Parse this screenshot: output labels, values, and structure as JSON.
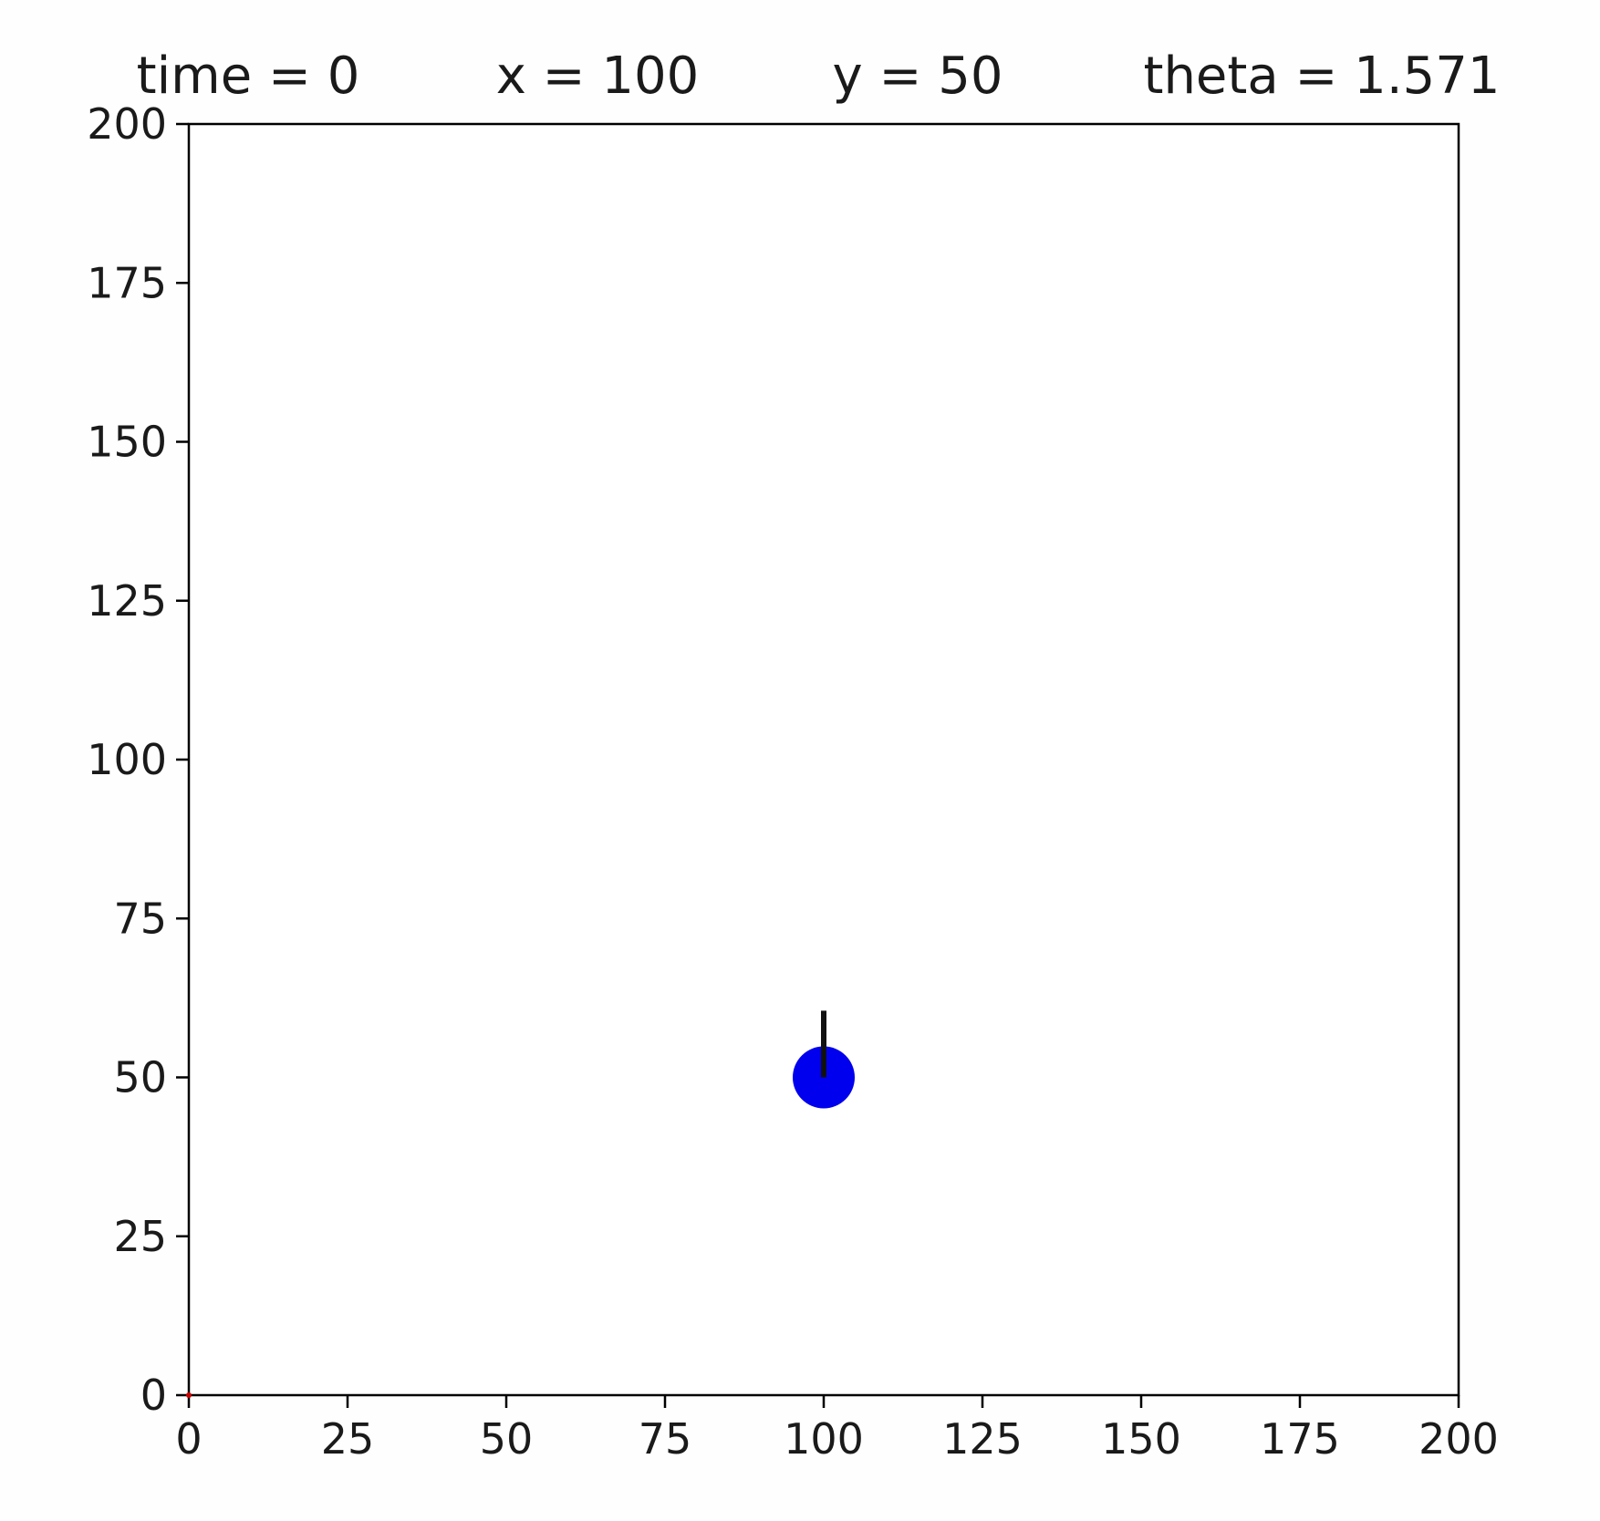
{
  "header": {
    "time_label": "time = 0",
    "x_label": "x = 100",
    "y_label": "y = 50",
    "theta_label": "theta = 1.571"
  },
  "chart_data": {
    "type": "scatter",
    "xlim": [
      0,
      200
    ],
    "ylim": [
      0,
      200
    ],
    "x_ticks": [
      "0",
      "25",
      "50",
      "75",
      "100",
      "125",
      "150",
      "175",
      "200"
    ],
    "y_ticks": [
      "0",
      "25",
      "50",
      "75",
      "100",
      "125",
      "150",
      "175",
      "200"
    ],
    "grid": false,
    "robot": {
      "x": 100,
      "y": 50,
      "theta": 1.571,
      "heading_length": 10.5,
      "color": "#0000ee",
      "heading_color": "#111111"
    },
    "trail": {
      "points": [
        [
          0,
          0
        ]
      ],
      "color": "#cc0000"
    }
  }
}
